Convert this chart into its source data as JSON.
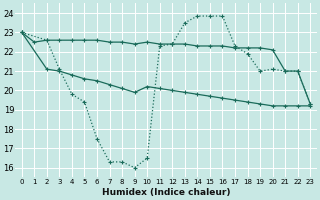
{
  "xlabel": "Humidex (Indice chaleur)",
  "background_color": "#c8e8e4",
  "grid_color": "#ffffff",
  "line_color": "#1a6b5a",
  "xlim": [
    -0.5,
    23.5
  ],
  "ylim": [
    15.5,
    24.5
  ],
  "xticks": [
    0,
    1,
    2,
    3,
    4,
    5,
    6,
    7,
    8,
    9,
    10,
    11,
    12,
    13,
    14,
    15,
    16,
    17,
    18,
    19,
    20,
    21,
    22,
    23
  ],
  "yticks": [
    16,
    17,
    18,
    19,
    20,
    21,
    22,
    23,
    24
  ],
  "curve1_x": [
    0,
    1,
    2,
    3,
    4,
    5,
    6,
    7,
    8,
    9,
    10,
    11,
    12,
    13,
    14,
    15,
    16,
    17,
    18,
    19,
    20,
    21,
    22,
    23
  ],
  "curve1_y": [
    23.0,
    22.5,
    22.6,
    22.6,
    22.6,
    22.6,
    22.6,
    22.5,
    22.5,
    22.4,
    22.5,
    22.4,
    22.4,
    22.4,
    22.3,
    22.3,
    22.3,
    22.2,
    22.2,
    22.2,
    22.1,
    21.0,
    21.0,
    19.3
  ],
  "curve2_x": [
    0,
    2,
    3,
    4,
    5,
    6,
    7,
    8,
    9,
    10,
    11,
    12,
    13,
    14,
    15,
    16,
    17,
    18,
    19,
    20,
    21,
    22,
    23
  ],
  "curve2_y": [
    23.0,
    22.6,
    21.1,
    19.8,
    19.4,
    17.5,
    16.3,
    16.3,
    16.0,
    16.5,
    22.3,
    22.4,
    23.5,
    23.85,
    23.85,
    23.85,
    22.3,
    21.9,
    21.0,
    21.1,
    21.0,
    21.0,
    19.3
  ],
  "curve3_x": [
    0,
    2,
    3,
    4,
    5,
    6,
    7,
    8,
    9,
    10,
    11,
    12,
    13,
    14,
    15,
    16,
    17,
    18,
    19,
    20,
    21,
    22,
    23
  ],
  "curve3_y": [
    23.0,
    21.1,
    21.0,
    20.8,
    20.6,
    20.5,
    20.3,
    20.1,
    19.9,
    20.2,
    20.1,
    20.0,
    19.9,
    19.8,
    19.7,
    19.6,
    19.5,
    19.4,
    19.3,
    19.2,
    19.2,
    19.2,
    19.2
  ]
}
